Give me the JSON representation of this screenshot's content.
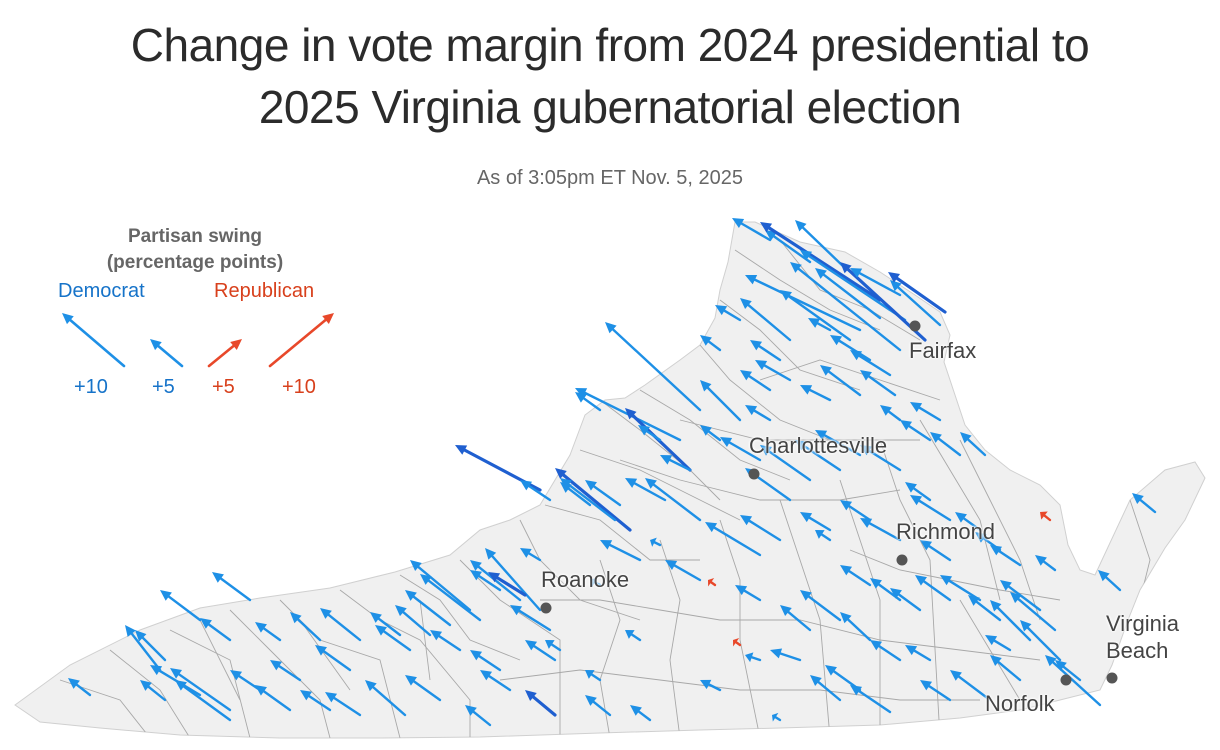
{
  "title_line1": "Change in vote margin from 2024 presidential to",
  "title_line2": "2025 Virginia gubernatorial election",
  "subtitle": "As of 3:05pm ET Nov. 5, 2025",
  "legend": {
    "title_line1": "Partisan swing",
    "title_line2": "(percentage points)",
    "democrat_label": "Democrat",
    "republican_label": "Republican",
    "samples": [
      "+10",
      "+5",
      "+5",
      "+10"
    ]
  },
  "colors": {
    "democrat": "#1e90e6",
    "democrat_strong": "#1f5fd0",
    "republican": "#e8482a",
    "land": "#f0f0f0",
    "border": "#a8a8a8",
    "city_dot": "#555555"
  },
  "cities": [
    {
      "name": "Fairfax"
    },
    {
      "name": "Charlottesville"
    },
    {
      "name": "Richmond"
    },
    {
      "name": "Roanoke"
    },
    {
      "name": "Virginia Beach"
    },
    {
      "name": "Norfolk"
    }
  ]
}
